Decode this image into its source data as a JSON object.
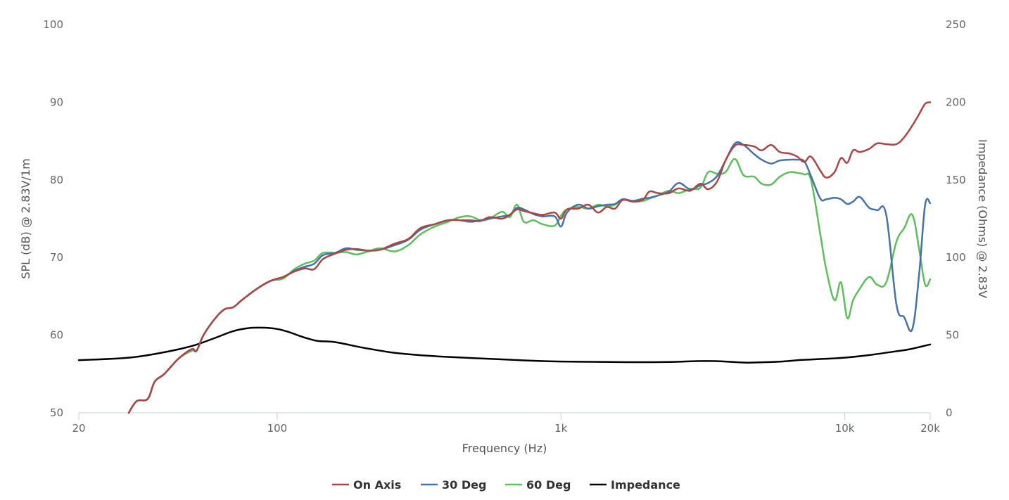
{
  "chart_data": {
    "type": "line",
    "xscale": "log",
    "xlabel": "Frequency (Hz)",
    "ylabel": "SPL (dB) @ 2.83V/1m",
    "y2label": "Impedance (Ohms) @ 2.83V",
    "xlim": [
      20,
      20000
    ],
    "ylim": [
      50,
      100
    ],
    "y2lim": [
      0,
      250
    ],
    "x_ticks": [
      {
        "value": 20,
        "label": "20"
      },
      {
        "value": 100,
        "label": "100"
      },
      {
        "value": 1000,
        "label": "1k"
      },
      {
        "value": 10000,
        "label": "10k"
      },
      {
        "value": 20000,
        "label": "20k"
      }
    ],
    "y_ticks": [
      {
        "value": 50,
        "label": "50"
      },
      {
        "value": 60,
        "label": "60"
      },
      {
        "value": 70,
        "label": "70"
      },
      {
        "value": 80,
        "label": "80"
      },
      {
        "value": 90,
        "label": "90"
      },
      {
        "value": 100,
        "label": "100"
      }
    ],
    "y2_ticks": [
      {
        "value": 0,
        "label": "0"
      },
      {
        "value": 50,
        "label": "50"
      },
      {
        "value": 100,
        "label": "100"
      },
      {
        "value": 150,
        "label": "150"
      },
      {
        "value": 200,
        "label": "200"
      },
      {
        "value": 250,
        "label": "250"
      }
    ],
    "grid": false,
    "legend_position": "bottom-center",
    "series": [
      {
        "name": "On Axis",
        "color": "#aa4643",
        "axis": "left",
        "points": [
          [
            30,
            50
          ],
          [
            32,
            51.5
          ],
          [
            35,
            51.8
          ],
          [
            37,
            54
          ],
          [
            40,
            55
          ],
          [
            45,
            57
          ],
          [
            50,
            58.2
          ],
          [
            52,
            58
          ],
          [
            55,
            60
          ],
          [
            60,
            62
          ],
          [
            65,
            63.3
          ],
          [
            70,
            63.6
          ],
          [
            75,
            64.5
          ],
          [
            85,
            66
          ],
          [
            95,
            67
          ],
          [
            105,
            67.5
          ],
          [
            115,
            68.2
          ],
          [
            125,
            68.6
          ],
          [
            135,
            68.5
          ],
          [
            145,
            69.8
          ],
          [
            160,
            70.5
          ],
          [
            175,
            71
          ],
          [
            190,
            71.1
          ],
          [
            210,
            70.9
          ],
          [
            230,
            71
          ],
          [
            260,
            71.8
          ],
          [
            290,
            72.4
          ],
          [
            320,
            73.8
          ],
          [
            360,
            74.3
          ],
          [
            400,
            74.8
          ],
          [
            440,
            74.8
          ],
          [
            480,
            74.8
          ],
          [
            520,
            74.7
          ],
          [
            560,
            75.2
          ],
          [
            620,
            75
          ],
          [
            660,
            75.5
          ],
          [
            700,
            76.2
          ],
          [
            740,
            76
          ],
          [
            800,
            75.7
          ],
          [
            860,
            75.5
          ],
          [
            950,
            75.8
          ],
          [
            1000,
            75
          ],
          [
            1050,
            76.2
          ],
          [
            1150,
            76.3
          ],
          [
            1250,
            76.8
          ],
          [
            1350,
            75.8
          ],
          [
            1450,
            76.5
          ],
          [
            1550,
            76.3
          ],
          [
            1650,
            77.4
          ],
          [
            1800,
            77.2
          ],
          [
            1950,
            77.5
          ],
          [
            2050,
            78.5
          ],
          [
            2200,
            78.3
          ],
          [
            2400,
            78.3
          ],
          [
            2600,
            78.9
          ],
          [
            2850,
            78.6
          ],
          [
            3100,
            79.5
          ],
          [
            3300,
            78.8
          ],
          [
            3550,
            79.8
          ],
          [
            3800,
            82.5
          ],
          [
            4100,
            84.4
          ],
          [
            4400,
            84.5
          ],
          [
            4800,
            84.3
          ],
          [
            5100,
            83.8
          ],
          [
            5500,
            84.5
          ],
          [
            5900,
            83.6
          ],
          [
            6400,
            83.4
          ],
          [
            6800,
            83
          ],
          [
            7200,
            82.3
          ],
          [
            7600,
            83
          ],
          [
            8200,
            81.2
          ],
          [
            8600,
            80.3
          ],
          [
            9200,
            81
          ],
          [
            9700,
            82.8
          ],
          [
            10200,
            82.2
          ],
          [
            10700,
            83.8
          ],
          [
            11300,
            83.6
          ],
          [
            12200,
            84
          ],
          [
            13000,
            84.7
          ],
          [
            14000,
            84.6
          ],
          [
            15200,
            84.6
          ],
          [
            16200,
            85.5
          ],
          [
            17300,
            87
          ],
          [
            18300,
            88.5
          ],
          [
            19200,
            89.8
          ],
          [
            20000,
            90
          ]
        ]
      },
      {
        "name": "30 Deg",
        "color": "#4572a7",
        "axis": "left",
        "points": [
          [
            30,
            50
          ],
          [
            32,
            51.5
          ],
          [
            35,
            51.8
          ],
          [
            37,
            54
          ],
          [
            40,
            55
          ],
          [
            45,
            57
          ],
          [
            50,
            58.2
          ],
          [
            52,
            58
          ],
          [
            55,
            60
          ],
          [
            60,
            62
          ],
          [
            65,
            63.3
          ],
          [
            70,
            63.6
          ],
          [
            75,
            64.5
          ],
          [
            85,
            66
          ],
          [
            95,
            67
          ],
          [
            105,
            67.5
          ],
          [
            115,
            68.3
          ],
          [
            125,
            68.8
          ],
          [
            135,
            69.2
          ],
          [
            145,
            70.3
          ],
          [
            160,
            70.6
          ],
          [
            175,
            71.2
          ],
          [
            190,
            71
          ],
          [
            210,
            70.9
          ],
          [
            230,
            71
          ],
          [
            260,
            71.6
          ],
          [
            290,
            72.3
          ],
          [
            320,
            73.6
          ],
          [
            360,
            74.3
          ],
          [
            400,
            74.8
          ],
          [
            440,
            74.8
          ],
          [
            480,
            74.6
          ],
          [
            520,
            74.8
          ],
          [
            560,
            75
          ],
          [
            620,
            75.3
          ],
          [
            660,
            75.5
          ],
          [
            700,
            76.4
          ],
          [
            740,
            76.2
          ],
          [
            800,
            75.6
          ],
          [
            860,
            75.3
          ],
          [
            950,
            75.3
          ],
          [
            1000,
            74
          ],
          [
            1050,
            75.8
          ],
          [
            1150,
            76.8
          ],
          [
            1250,
            76.3
          ],
          [
            1350,
            76.6
          ],
          [
            1450,
            76.8
          ],
          [
            1550,
            76.9
          ],
          [
            1650,
            77.5
          ],
          [
            1800,
            77.3
          ],
          [
            1950,
            77.6
          ],
          [
            2050,
            77.7
          ],
          [
            2200,
            78
          ],
          [
            2400,
            78.5
          ],
          [
            2600,
            79.6
          ],
          [
            2850,
            78.8
          ],
          [
            3100,
            79.3
          ],
          [
            3300,
            79.6
          ],
          [
            3550,
            80.5
          ],
          [
            3800,
            82.5
          ],
          [
            4100,
            84.7
          ],
          [
            4400,
            84.5
          ],
          [
            4800,
            83.3
          ],
          [
            5100,
            82.6
          ],
          [
            5500,
            82.1
          ],
          [
            5900,
            82.5
          ],
          [
            6400,
            82.6
          ],
          [
            6800,
            82.6
          ],
          [
            7200,
            82.4
          ],
          [
            7600,
            80.5
          ],
          [
            8200,
            77.6
          ],
          [
            8600,
            77.5
          ],
          [
            9200,
            77.7
          ],
          [
            9700,
            77.5
          ],
          [
            10200,
            76.9
          ],
          [
            10700,
            77.2
          ],
          [
            11300,
            77.8
          ],
          [
            12200,
            76.4
          ],
          [
            13000,
            76.1
          ],
          [
            14000,
            75.5
          ],
          [
            15200,
            64
          ],
          [
            16200,
            62.3
          ],
          [
            17300,
            60.8
          ],
          [
            18300,
            68
          ],
          [
            19200,
            76.8
          ],
          [
            20000,
            77
          ]
        ]
      },
      {
        "name": "60 Deg",
        "color": "#5cbf5c",
        "axis": "left",
        "points": [
          [
            30,
            50
          ],
          [
            32,
            51.5
          ],
          [
            35,
            51.8
          ],
          [
            37,
            54
          ],
          [
            40,
            55
          ],
          [
            45,
            57
          ],
          [
            50,
            58
          ],
          [
            52,
            58
          ],
          [
            55,
            60
          ],
          [
            60,
            62
          ],
          [
            65,
            63.3
          ],
          [
            70,
            63.6
          ],
          [
            75,
            64.5
          ],
          [
            85,
            66
          ],
          [
            95,
            67
          ],
          [
            105,
            67.3
          ],
          [
            115,
            68.5
          ],
          [
            125,
            69.2
          ],
          [
            135,
            69.6
          ],
          [
            145,
            70.6
          ],
          [
            160,
            70.6
          ],
          [
            175,
            70.7
          ],
          [
            190,
            70.4
          ],
          [
            210,
            70.8
          ],
          [
            230,
            71.2
          ],
          [
            260,
            70.8
          ],
          [
            290,
            71.6
          ],
          [
            320,
            73
          ],
          [
            360,
            74
          ],
          [
            400,
            74.6
          ],
          [
            440,
            75.2
          ],
          [
            480,
            75.3
          ],
          [
            520,
            74.8
          ],
          [
            560,
            75
          ],
          [
            620,
            75.9
          ],
          [
            660,
            75.2
          ],
          [
            700,
            76.8
          ],
          [
            740,
            74.6
          ],
          [
            800,
            74.8
          ],
          [
            860,
            74.3
          ],
          [
            950,
            74.1
          ],
          [
            1000,
            75.4
          ],
          [
            1050,
            76.2
          ],
          [
            1150,
            76.5
          ],
          [
            1250,
            76.3
          ],
          [
            1350,
            76.8
          ],
          [
            1450,
            76.6
          ],
          [
            1550,
            76.8
          ],
          [
            1650,
            77.5
          ],
          [
            1800,
            77.2
          ],
          [
            1950,
            77.3
          ],
          [
            2050,
            77.6
          ],
          [
            2200,
            78
          ],
          [
            2400,
            78.6
          ],
          [
            2600,
            78.3
          ],
          [
            2850,
            78.8
          ],
          [
            3100,
            79
          ],
          [
            3300,
            81
          ],
          [
            3550,
            80.8
          ],
          [
            3800,
            81
          ],
          [
            4100,
            82.7
          ],
          [
            4400,
            80.6
          ],
          [
            4800,
            80.4
          ],
          [
            5100,
            79.5
          ],
          [
            5500,
            79.4
          ],
          [
            5900,
            80.4
          ],
          [
            6400,
            81
          ],
          [
            6800,
            80.9
          ],
          [
            7200,
            80.7
          ],
          [
            7600,
            80
          ],
          [
            8200,
            73
          ],
          [
            8600,
            68.5
          ],
          [
            9200,
            64.5
          ],
          [
            9700,
            66.8
          ],
          [
            10200,
            62.2
          ],
          [
            10700,
            64.5
          ],
          [
            11300,
            66
          ],
          [
            12200,
            67.5
          ],
          [
            13000,
            66.5
          ],
          [
            14000,
            66.8
          ],
          [
            15200,
            72
          ],
          [
            16200,
            73.8
          ],
          [
            17300,
            75.5
          ],
          [
            18300,
            71
          ],
          [
            19200,
            66.5
          ],
          [
            20000,
            67.2
          ]
        ]
      },
      {
        "name": "Impedance",
        "color": "#000000",
        "axis": "right",
        "points": [
          [
            20,
            33.9
          ],
          [
            30,
            35.5
          ],
          [
            40,
            39
          ],
          [
            50,
            43
          ],
          [
            60,
            48
          ],
          [
            70,
            52.6
          ],
          [
            80,
            54.6
          ],
          [
            90,
            54.8
          ],
          [
            100,
            54
          ],
          [
            110,
            52
          ],
          [
            120,
            49.5
          ],
          [
            130,
            47.5
          ],
          [
            140,
            46.2
          ],
          [
            160,
            45.5
          ],
          [
            200,
            42
          ],
          [
            250,
            39
          ],
          [
            300,
            37.5
          ],
          [
            400,
            36
          ],
          [
            600,
            34.5
          ],
          [
            800,
            33.5
          ],
          [
            1000,
            33
          ],
          [
            1500,
            32.7
          ],
          [
            2000,
            32.6
          ],
          [
            2500,
            32.8
          ],
          [
            3000,
            33.3
          ],
          [
            3500,
            33.3
          ],
          [
            4000,
            32.8
          ],
          [
            4500,
            32.3
          ],
          [
            5000,
            32.5
          ],
          [
            6000,
            33
          ],
          [
            7000,
            34
          ],
          [
            8000,
            34.5
          ],
          [
            10000,
            35.5
          ],
          [
            12000,
            37
          ],
          [
            15000,
            39.5
          ],
          [
            17000,
            41
          ],
          [
            20000,
            44
          ]
        ]
      }
    ]
  }
}
